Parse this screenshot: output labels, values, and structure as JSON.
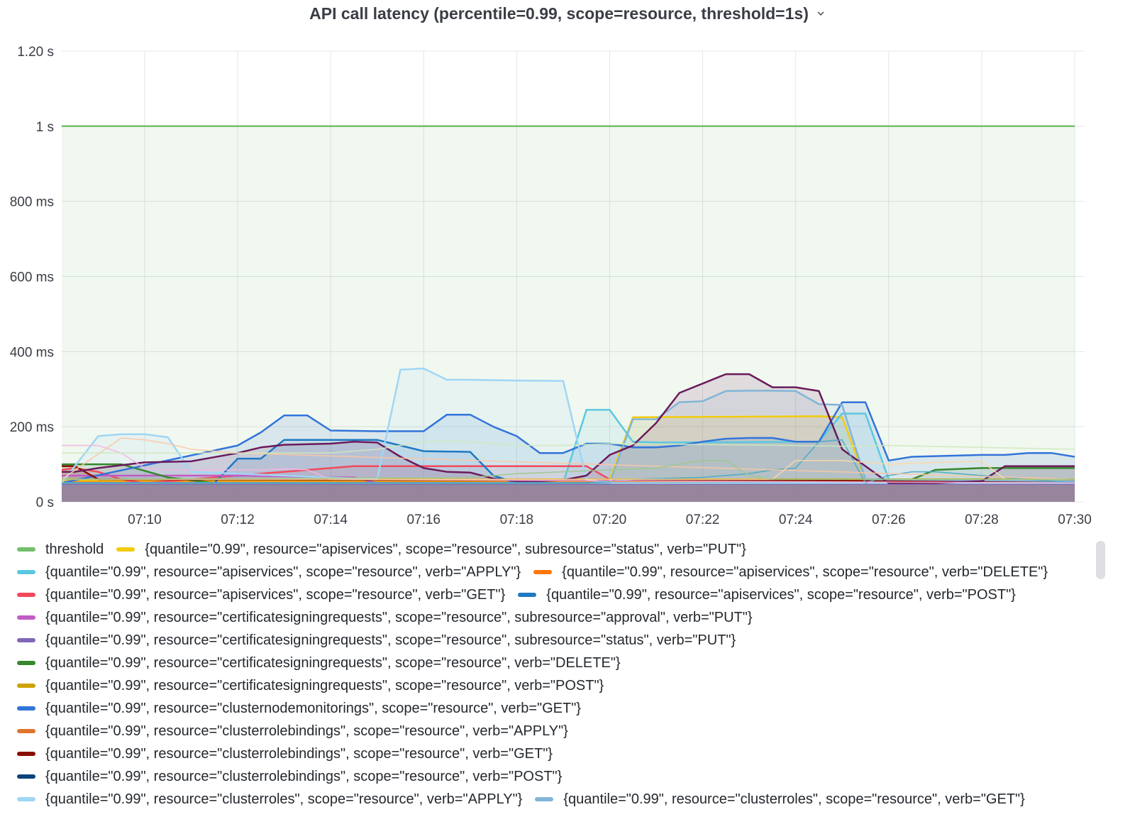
{
  "panel": {
    "title": "API call latency (percentile=0.99, scope=resource, threshold=1s)",
    "menu_icon": "chevron-down-icon"
  },
  "chart_data": {
    "type": "line",
    "title": "API call latency (percentile=0.99, scope=resource, threshold=1s)",
    "y_unit": "s",
    "ylim": [
      0,
      1.2
    ],
    "y_ticks": [
      {
        "v": 0,
        "label": "0 s"
      },
      {
        "v": 0.2,
        "label": "200 ms"
      },
      {
        "v": 0.4,
        "label": "400 ms"
      },
      {
        "v": 0.6,
        "label": "600 ms"
      },
      {
        "v": 0.8,
        "label": "800 ms"
      },
      {
        "v": 1.0,
        "label": "1 s"
      },
      {
        "v": 1.2,
        "label": "1.20 s"
      }
    ],
    "xlim": [
      "07:08:13",
      "07:30:00"
    ],
    "x_ticks": [
      "07:10",
      "07:12",
      "07:14",
      "07:16",
      "07:18",
      "07:20",
      "07:22",
      "07:24",
      "07:26",
      "07:28",
      "07:30"
    ],
    "grid": true,
    "legend_position": "bottom",
    "series": [
      {
        "name": "threshold",
        "color": "#73bf69",
        "fill": true,
        "x": [
          "07:08:13",
          "07:30:00"
        ],
        "y": [
          1.0,
          1.0
        ]
      },
      {
        "name": "{quantile=\"0.99\", resource=\"apiservices\", scope=\"resource\", subresource=\"status\", verb=\"PUT\"}",
        "color": "#f2cc0c",
        "fill": true,
        "x": [
          "07:08:13",
          "07:19:00",
          "07:20:00",
          "07:20:30",
          "07:24:30",
          "07:25:00",
          "07:25:30",
          "07:30:00"
        ],
        "y": [
          0.055,
          0.055,
          0.06,
          0.225,
          0.228,
          0.225,
          0.06,
          0.055
        ]
      },
      {
        "name": "{quantile=\"0.99\", resource=\"apiservices\", scope=\"resource\", verb=\"APPLY\"}",
        "color": "#5ac8e0",
        "fill": true,
        "x": [
          "07:08:13",
          "07:19:00",
          "07:19:30",
          "07:20:00",
          "07:20:30",
          "07:21:00",
          "07:24:30",
          "07:25:00",
          "07:25:30",
          "07:26:00",
          "07:30:00"
        ],
        "y": [
          0.05,
          0.05,
          0.245,
          0.245,
          0.16,
          0.158,
          0.16,
          0.235,
          0.235,
          0.06,
          0.055
        ]
      },
      {
        "name": "{quantile=\"0.99\", resource=\"apiservices\", scope=\"resource\", verb=\"DELETE\"}",
        "color": "#ff780a",
        "fill": true,
        "x": [
          "07:08:13",
          "07:30:00"
        ],
        "y": [
          0.052,
          0.052
        ]
      },
      {
        "name": "{quantile=\"0.99\", resource=\"apiservices\", scope=\"resource\", verb=\"GET\"}",
        "color": "#f2495c",
        "fill": true,
        "x": [
          "07:08:13",
          "07:08:30",
          "07:09:00",
          "07:09:30",
          "07:10:00",
          "07:14:30",
          "07:19:30",
          "07:20:00",
          "07:30:00"
        ],
        "y": [
          0.085,
          0.09,
          0.08,
          0.06,
          0.05,
          0.095,
          0.095,
          0.06,
          0.05
        ]
      },
      {
        "name": "{quantile=\"0.99\", resource=\"apiservices\", scope=\"resource\", verb=\"POST\"}",
        "color": "#1f78c1",
        "fill": true,
        "x": [
          "07:08:13",
          "07:11:30",
          "07:12:00",
          "07:12:30",
          "07:13:00",
          "07:15:00",
          "07:16:00",
          "07:17:00",
          "07:17:30",
          "07:18:00",
          "07:30:00"
        ],
        "y": [
          0.05,
          0.05,
          0.115,
          0.115,
          0.165,
          0.165,
          0.135,
          0.133,
          0.07,
          0.05,
          0.05
        ]
      },
      {
        "name": "{quantile=\"0.99\", resource=\"certificatesigningrequests\", scope=\"resource\", subresource=\"approval\", verb=\"PUT\"}",
        "color": "#c15cc4",
        "fill": true,
        "x": [
          "07:08:13",
          "07:10:00",
          "07:12:00",
          "07:14:30",
          "07:15:00",
          "07:30:00"
        ],
        "y": [
          0.07,
          0.07,
          0.07,
          0.065,
          0.05,
          0.05
        ]
      },
      {
        "name": "{quantile=\"0.99\", resource=\"certificatesigningrequests\", scope=\"resource\", subresource=\"status\", verb=\"PUT\"}",
        "color": "#8066b8",
        "fill": true,
        "x": [
          "07:08:13",
          "07:30:00"
        ],
        "y": [
          0.048,
          0.048
        ]
      },
      {
        "name": "{quantile=\"0.99\", resource=\"certificatesigningrequests\", scope=\"resource\", verb=\"DELETE\"}",
        "color": "#37872d",
        "fill": true,
        "x": [
          "07:08:13",
          "07:09:30",
          "07:10:30",
          "07:11:30",
          "07:12:00",
          "07:25:00",
          "07:26:30",
          "07:27:00",
          "07:28:00",
          "07:30:00"
        ],
        "y": [
          0.1,
          0.1,
          0.065,
          0.05,
          0.05,
          0.05,
          0.06,
          0.085,
          0.09,
          0.09
        ]
      },
      {
        "name": "{quantile=\"0.99\", resource=\"certificatesigningrequests\", scope=\"resource\", verb=\"POST\"}",
        "color": "#cca300",
        "fill": true,
        "x": [
          "07:08:13",
          "07:30:00"
        ],
        "y": [
          0.06,
          0.06
        ]
      },
      {
        "name": "{quantile=\"0.99\", resource=\"clusternodemonitorings\", scope=\"resource\", verb=\"GET\"}",
        "color": "#3274d9",
        "fill": true,
        "x": [
          "07:08:13",
          "07:12:00",
          "07:12:30",
          "07:13:00",
          "07:13:30",
          "07:14:00",
          "07:15:00",
          "07:16:00",
          "07:16:30",
          "07:17:00",
          "07:17:30",
          "07:18:00",
          "07:18:30",
          "07:19:00",
          "07:19:30",
          "07:20:00",
          "07:20:30",
          "07:21:00",
          "07:21:30",
          "07:22:00",
          "07:22:30",
          "07:23:00",
          "07:23:30",
          "07:24:00",
          "07:24:30",
          "07:25:00",
          "07:25:30",
          "07:26:00",
          "07:26:30",
          "07:28:00",
          "07:28:30",
          "07:29:00",
          "07:29:30",
          "07:30:00"
        ],
        "y": [
          0.05,
          0.15,
          0.185,
          0.23,
          0.23,
          0.19,
          0.188,
          0.188,
          0.232,
          0.232,
          0.2,
          0.175,
          0.13,
          0.13,
          0.155,
          0.155,
          0.145,
          0.145,
          0.15,
          0.16,
          0.168,
          0.17,
          0.17,
          0.16,
          0.16,
          0.265,
          0.265,
          0.11,
          0.12,
          0.125,
          0.125,
          0.13,
          0.13,
          0.12
        ]
      },
      {
        "name": "{quantile=\"0.99\", resource=\"clusterrolebindings\", scope=\"resource\", verb=\"APPLY\"}",
        "color": "#e0752d",
        "fill": true,
        "x": [
          "07:08:13",
          "07:30:00"
        ],
        "y": [
          0.05,
          0.05
        ]
      },
      {
        "name": "{quantile=\"0.99\", resource=\"clusterrolebindings\", scope=\"resource\", verb=\"GET\"}",
        "color": "#890f02",
        "fill": true,
        "x": [
          "07:08:13",
          "07:08:30",
          "07:09:00",
          "07:30:00"
        ],
        "y": [
          0.095,
          0.095,
          0.06,
          0.055
        ]
      },
      {
        "name": "{quantile=\"0.99\", resource=\"clusterrolebindings\", scope=\"resource\", verb=\"POST\"}",
        "color": "#0a437c",
        "fill": true,
        "x": [
          "07:08:13",
          "07:30:00"
        ],
        "y": [
          0.05,
          0.05
        ]
      },
      {
        "name": "{quantile=\"0.99\", resource=\"clusterroles\", scope=\"resource\", verb=\"APPLY\"}",
        "color": "#a0d6f5",
        "fill": true,
        "x": [
          "07:08:13",
          "07:09:00",
          "07:09:30",
          "07:10:00",
          "07:10:30",
          "07:11:00",
          "07:15:00",
          "07:15:30",
          "07:16:00",
          "07:16:30",
          "07:17:00",
          "07:18:00",
          "07:19:00",
          "07:19:30",
          "07:20:00",
          "07:30:00"
        ],
        "y": [
          0.05,
          0.175,
          0.18,
          0.18,
          0.172,
          0.08,
          0.06,
          0.352,
          0.355,
          0.325,
          0.325,
          0.323,
          0.322,
          0.06,
          0.05,
          0.05
        ]
      },
      {
        "name": "{quantile=\"0.99\", resource=\"clusterroles\", scope=\"resource\", verb=\"GET\"}",
        "color": "#82b5d8",
        "fill": true,
        "x": [
          "07:08:13",
          "07:20:00",
          "07:20:30",
          "07:21:00",
          "07:21:30",
          "07:22:00",
          "07:22:30",
          "07:23:00",
          "07:23:30",
          "07:24:00",
          "07:24:30",
          "07:25:00",
          "07:25:30",
          "07:30:00"
        ],
        "y": [
          0.05,
          0.05,
          0.22,
          0.22,
          0.265,
          0.268,
          0.295,
          0.296,
          0.296,
          0.295,
          0.26,
          0.258,
          0.06,
          0.055
        ]
      },
      {
        "name": "",
        "color": "#6b1a5b",
        "fill": true,
        "x": [
          "07:08:13",
          "07:08:30",
          "07:09:00",
          "07:10:00",
          "07:11:00",
          "07:12:00",
          "07:12:30",
          "07:13:00",
          "07:14:00",
          "07:14:30",
          "07:15:00",
          "07:15:30",
          "07:16:00",
          "07:16:30",
          "07:17:00",
          "07:17:30",
          "07:18:00",
          "07:18:30",
          "07:19:00",
          "07:19:30",
          "07:20:00",
          "07:20:30",
          "07:21:00",
          "07:21:30",
          "07:22:00",
          "07:22:30",
          "07:23:00",
          "07:23:30",
          "07:24:00",
          "07:24:30",
          "07:25:00",
          "07:26:00",
          "07:27:00",
          "07:28:00",
          "07:28:30",
          "07:30:00"
        ],
        "y": [
          0.08,
          0.08,
          0.09,
          0.105,
          0.108,
          0.13,
          0.145,
          0.152,
          0.155,
          0.16,
          0.158,
          0.12,
          0.09,
          0.08,
          0.078,
          0.062,
          0.055,
          0.055,
          0.058,
          0.07,
          0.125,
          0.15,
          0.21,
          0.29,
          0.315,
          0.34,
          0.34,
          0.305,
          0.305,
          0.295,
          0.14,
          0.05,
          0.05,
          0.055,
          0.095,
          0.095
        ]
      },
      {
        "name": "",
        "color": "#4aa8c2",
        "fill": false,
        "x": [
          "07:08:13",
          "07:19:30",
          "07:20:00",
          "07:20:30",
          "07:21:00",
          "07:22:00",
          "07:23:00",
          "07:23:30",
          "07:24:00",
          "07:24:30",
          "07:25:00",
          "07:25:30",
          "07:26:00",
          "07:26:30",
          "07:27:00",
          "07:30:00"
        ],
        "y": [
          0.05,
          0.05,
          0.055,
          0.06,
          0.062,
          0.065,
          0.075,
          0.085,
          0.09,
          0.16,
          0.165,
          0.05,
          0.07,
          0.08,
          0.08,
          0.05
        ]
      },
      {
        "name": "",
        "color": "#f4b6e0",
        "fill": false,
        "x": [
          "07:08:13",
          "07:08:30",
          "07:09:00",
          "07:09:30",
          "07:10:00",
          "07:10:30",
          "07:11:00",
          "07:12:00",
          "07:12:30",
          "07:13:00",
          "07:13:30",
          "07:14:00",
          "07:30:00"
        ],
        "y": [
          0.15,
          0.15,
          0.15,
          0.13,
          0.09,
          0.085,
          0.085,
          0.085,
          0.085,
          0.088,
          0.085,
          0.06,
          0.05
        ]
      },
      {
        "name": "",
        "color": "#fbc6a4",
        "fill": false,
        "x": [
          "07:08:13",
          "07:09:30",
          "07:10:00",
          "07:10:30",
          "07:11:00",
          "07:11:30",
          "07:12:00",
          "07:30:00"
        ],
        "y": [
          0.06,
          0.17,
          0.165,
          0.155,
          0.14,
          0.135,
          0.13,
          0.06
        ]
      },
      {
        "name": "",
        "color": "#cfe8bf",
        "fill": false,
        "x": [
          "07:08:13",
          "07:14:00",
          "07:15:00",
          "07:16:00",
          "07:17:00",
          "07:18:00",
          "07:19:00",
          "07:20:00",
          "07:24:00",
          "07:25:00",
          "07:26:00",
          "07:30:00"
        ],
        "y": [
          0.13,
          0.13,
          0.14,
          0.16,
          0.16,
          0.15,
          0.15,
          0.155,
          0.15,
          0.148,
          0.15,
          0.14
        ]
      },
      {
        "name": "",
        "color": "#fcd7a8",
        "fill": false,
        "x": [
          "07:08:13",
          "07:23:30",
          "07:24:00",
          "07:25:00",
          "07:25:30",
          "07:26:00",
          "07:27:00",
          "07:28:00",
          "07:28:30",
          "07:30:00"
        ],
        "y": [
          0.06,
          0.06,
          0.11,
          0.11,
          0.105,
          0.1,
          0.105,
          0.108,
          0.06,
          0.06
        ]
      },
      {
        "name": "",
        "color": "#9fc88d",
        "fill": false,
        "x": [
          "07:08:13",
          "07:17:00",
          "07:18:00",
          "07:19:00",
          "07:20:00",
          "07:21:00",
          "07:21:30",
          "07:22:00",
          "07:22:30",
          "07:23:00",
          "07:23:30",
          "07:30:00"
        ],
        "y": [
          0.06,
          0.065,
          0.075,
          0.08,
          0.085,
          0.09,
          0.1,
          0.11,
          0.11,
          0.07,
          0.06,
          0.06
        ]
      }
    ]
  },
  "legend": {
    "rows": [
      [
        0,
        1
      ],
      [
        2,
        3
      ],
      [
        4,
        5
      ],
      [
        6
      ],
      [
        7
      ],
      [
        8
      ],
      [
        9
      ],
      [
        10
      ],
      [
        11
      ],
      [
        12
      ],
      [
        13
      ],
      [
        14,
        15
      ]
    ]
  }
}
